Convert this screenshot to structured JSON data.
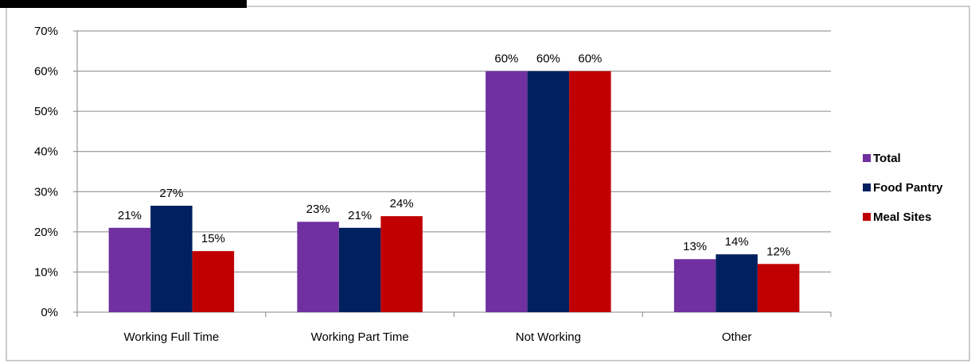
{
  "chart_data": {
    "type": "bar",
    "categories": [
      "Working Full Time",
      "Working Part Time",
      "Not Working",
      "Other"
    ],
    "series": [
      {
        "name": "Total",
        "color": "#7030A0",
        "values": [
          21,
          22.5,
          60,
          13.2
        ],
        "labels": [
          "21%",
          "23%",
          "60%",
          "13%"
        ]
      },
      {
        "name": "Food Pantry",
        "color": "#002060",
        "values": [
          26.5,
          21,
          60,
          14.4
        ],
        "labels": [
          "27%",
          "21%",
          "60%",
          "14%"
        ]
      },
      {
        "name": "Meal Sites",
        "color": "#C00000",
        "values": [
          15.2,
          23.9,
          60,
          12
        ],
        "labels": [
          "15%",
          "24%",
          "60%",
          "12%"
        ]
      }
    ],
    "yticks": [
      "0%",
      "10%",
      "20%",
      "30%",
      "40%",
      "50%",
      "60%",
      "70%"
    ],
    "ylim": [
      0,
      70
    ],
    "grid": true,
    "legend_position": "right"
  }
}
